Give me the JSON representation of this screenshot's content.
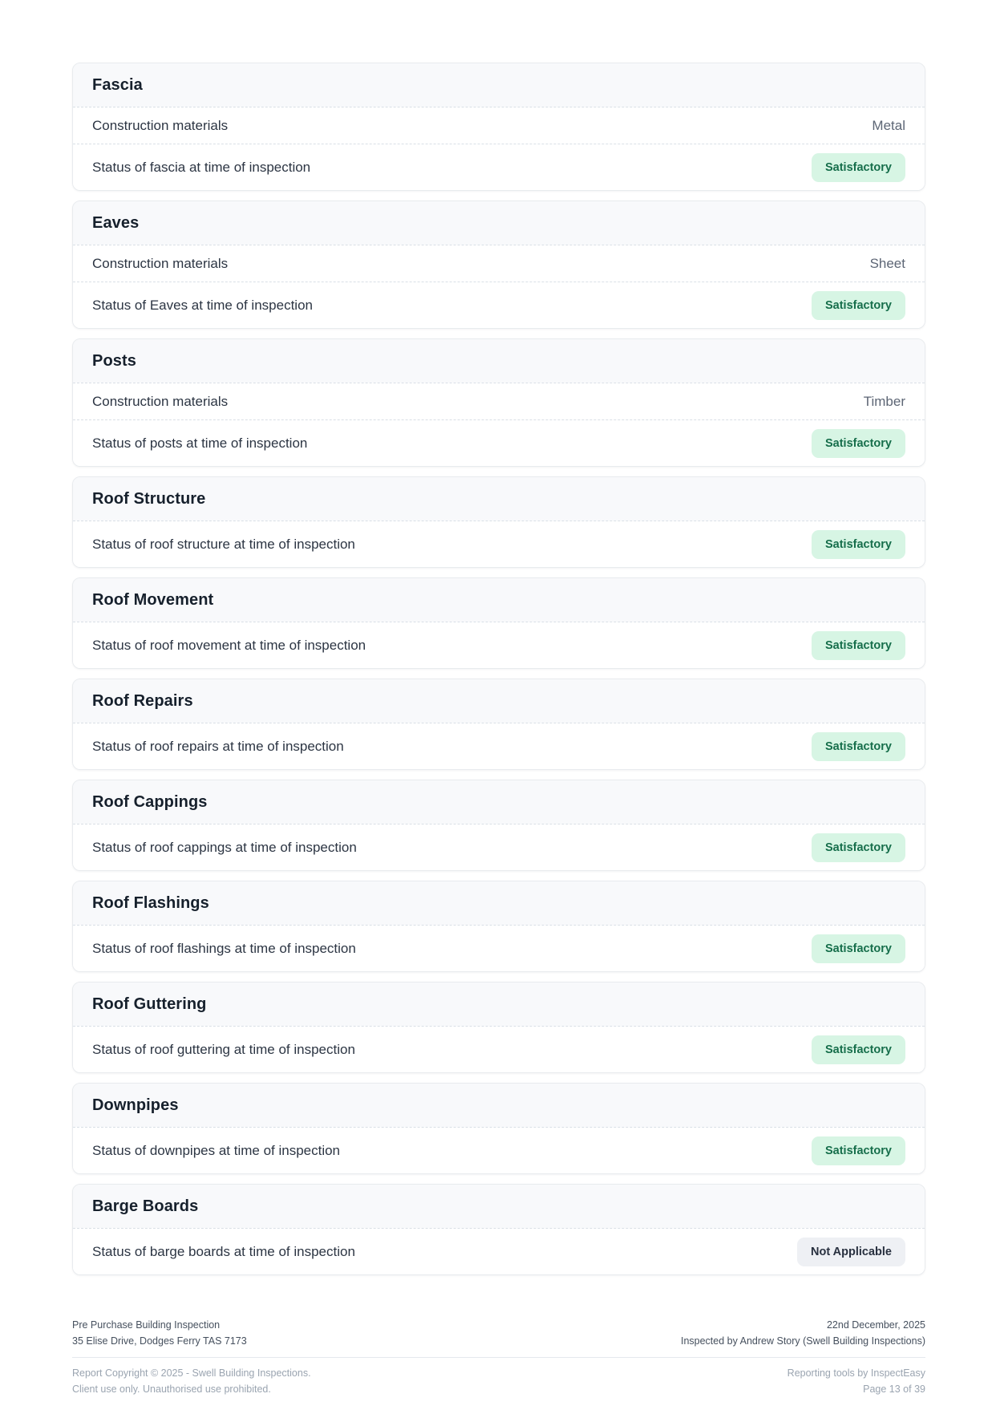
{
  "sections": [
    {
      "title": "Fascia",
      "rows": [
        {
          "label": "Construction materials",
          "value": "Metal"
        },
        {
          "label": "Status of fascia at time of inspection",
          "badge": "Satisfactory",
          "badge_style": "green"
        }
      ]
    },
    {
      "title": "Eaves",
      "rows": [
        {
          "label": "Construction materials",
          "value": "Sheet"
        },
        {
          "label": "Status of Eaves at time of inspection",
          "badge": "Satisfactory",
          "badge_style": "green"
        }
      ]
    },
    {
      "title": "Posts",
      "rows": [
        {
          "label": "Construction materials",
          "value": "Timber"
        },
        {
          "label": "Status of posts at time of inspection",
          "badge": "Satisfactory",
          "badge_style": "green"
        }
      ]
    },
    {
      "title": "Roof Structure",
      "rows": [
        {
          "label": "Status of roof structure at time of inspection",
          "badge": "Satisfactory",
          "badge_style": "green"
        }
      ]
    },
    {
      "title": "Roof Movement",
      "rows": [
        {
          "label": "Status of roof movement at time of inspection",
          "badge": "Satisfactory",
          "badge_style": "green"
        }
      ]
    },
    {
      "title": "Roof Repairs",
      "rows": [
        {
          "label": "Status of roof repairs at time of inspection",
          "badge": "Satisfactory",
          "badge_style": "green"
        }
      ]
    },
    {
      "title": "Roof Cappings",
      "rows": [
        {
          "label": "Status of roof cappings at time of inspection",
          "badge": "Satisfactory",
          "badge_style": "green"
        }
      ]
    },
    {
      "title": "Roof Flashings",
      "rows": [
        {
          "label": "Status of roof flashings at time of inspection",
          "badge": "Satisfactory",
          "badge_style": "green"
        }
      ]
    },
    {
      "title": "Roof Guttering",
      "rows": [
        {
          "label": "Status of roof guttering at time of inspection",
          "badge": "Satisfactory",
          "badge_style": "green"
        }
      ]
    },
    {
      "title": "Downpipes",
      "rows": [
        {
          "label": "Status of downpipes at time of inspection",
          "badge": "Satisfactory",
          "badge_style": "green"
        }
      ]
    },
    {
      "title": "Barge Boards",
      "rows": [
        {
          "label": "Status of barge boards at time of inspection",
          "badge": "Not Applicable",
          "badge_style": "gray"
        }
      ]
    }
  ],
  "footer": {
    "report_title": "Pre Purchase Building Inspection",
    "property_address": "35 Elise Drive, Dodges Ferry TAS 7173",
    "inspection_date": "22nd December, 2025",
    "inspected_by": "Inspected by Andrew Story (Swell Building Inspections)",
    "copyright": "Report Copyright © 2025 - Swell Building Inspections.",
    "client_notice": "Client use only. Unauthorised use prohibited.",
    "tools_credit": "Reporting tools by InspectEasy",
    "page_number": "Page 13 of 39"
  },
  "colors": {
    "badge_green_bg": "#d7f5e4",
    "badge_green_text": "#166e4b",
    "badge_gray_bg": "#eef0f4",
    "badge_gray_text": "#28303f"
  }
}
